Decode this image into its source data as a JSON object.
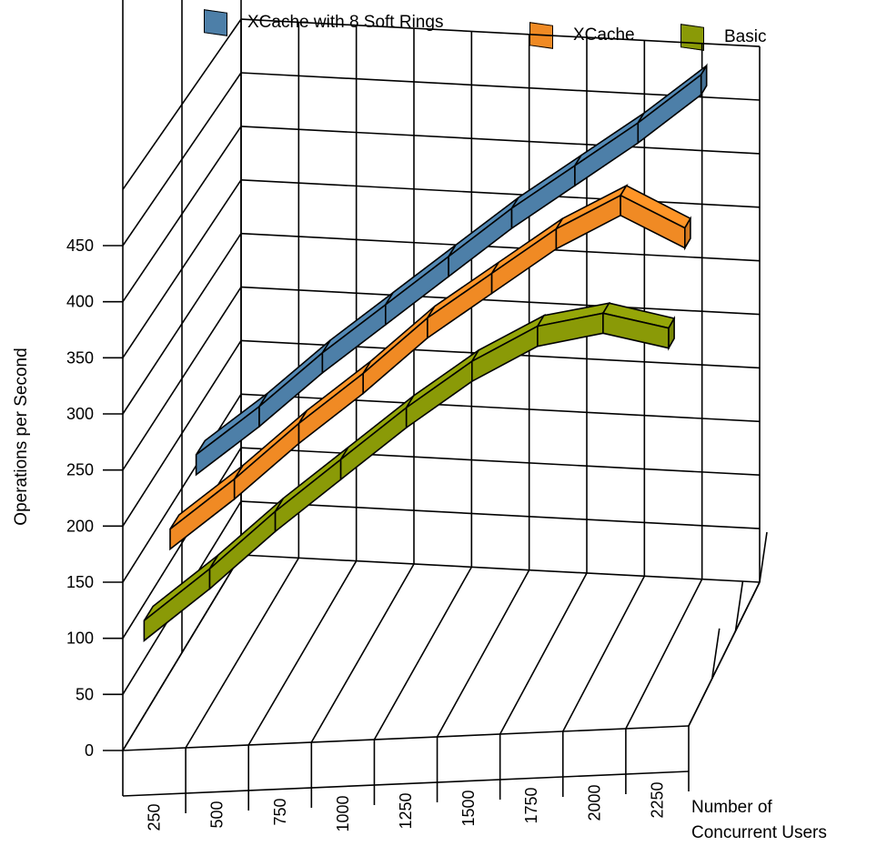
{
  "chart_data": {
    "type": "line",
    "style": "3d-ribbon",
    "title": "",
    "xlabel_lines": [
      "Number of",
      "Concurrent Users"
    ],
    "ylabel": "Operations per Second",
    "x": [
      250,
      500,
      750,
      1000,
      1250,
      1500,
      1750,
      2000,
      2250
    ],
    "x_tick_labels": [
      "250",
      "500",
      "750",
      "1000",
      "1250",
      "1500",
      "1750",
      "2000",
      "2250"
    ],
    "y_ticks": [
      "0",
      "50",
      "100",
      "150",
      "200",
      "250",
      "300",
      "350",
      "400",
      "450"
    ],
    "ylim": [
      0,
      450
    ],
    "legend_position": "top",
    "grid": true,
    "series": [
      {
        "name": "XCache with 8 Soft Rings",
        "color": "#4d7fa8",
        "values": [
          160,
          205,
          255,
          300,
          345,
          390,
          430,
          470,
          515
        ]
      },
      {
        "name": "XCache",
        "color": "#f08a24",
        "values": [
          130,
          175,
          225,
          270,
          320,
          360,
          400,
          430,
          400
        ]
      },
      {
        "name": "Basic",
        "color": "#8a9a07",
        "values": [
          85,
          130,
          180,
          225,
          270,
          310,
          340,
          350,
          335
        ]
      }
    ]
  }
}
